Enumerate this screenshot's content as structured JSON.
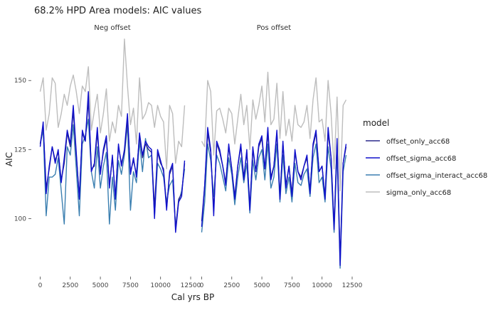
{
  "chart_data": {
    "type": "line",
    "title": "68.2% HPD Area models: AIC values",
    "xlabel": "Cal yrs BP",
    "ylabel": "AIC",
    "facets": [
      "Neg offset",
      "Pos offset"
    ],
    "xlim": [
      -500,
      12500
    ],
    "ylim": [
      80,
      165
    ],
    "xticks": [
      0,
      2500,
      5000,
      7500,
      10000,
      12500
    ],
    "yticks": [
      100,
      125,
      150
    ],
    "grid": false,
    "legend": {
      "title": "model",
      "position": "right"
    },
    "x": [
      0,
      250,
      500,
      750,
      1000,
      1250,
      1500,
      1750,
      2000,
      2250,
      2500,
      2750,
      3000,
      3250,
      3500,
      3750,
      4000,
      4250,
      4500,
      4750,
      5000,
      5250,
      5500,
      5750,
      6000,
      6250,
      6500,
      6750,
      7000,
      7250,
      7500,
      7750,
      8000,
      8250,
      8500,
      8750,
      9000,
      9250,
      9500,
      9750,
      10000,
      10250,
      10500,
      10750,
      11000,
      11250,
      11500,
      11750,
      12000
    ],
    "series": [
      {
        "name": "offset_only_acc68",
        "color": "#2b2a8c",
        "facets": [
          [
            127,
            134,
            111,
            118,
            126,
            121,
            124,
            114,
            120,
            131,
            126,
            139,
            123,
            108,
            131,
            128,
            143,
            118,
            119,
            131,
            117,
            124,
            129,
            112,
            122,
            108,
            126,
            120,
            124,
            136,
            117,
            121,
            116,
            130,
            122,
            127,
            125,
            124,
            104,
            124,
            120,
            118,
            104,
            116,
            119,
            96,
            107,
            109,
            120
          ],
          [
            99,
            112,
            131,
            124,
            103,
            127,
            124,
            119,
            113,
            126,
            118,
            108,
            119,
            126,
            115,
            124,
            104,
            125,
            117,
            126,
            129,
            118,
            131,
            115,
            119,
            131,
            108,
            127,
            112,
            119,
            109,
            124,
            117,
            115,
            119,
            122,
            110,
            126,
            131,
            117,
            119,
            108,
            131,
            122,
            97,
            128,
            85,
            120,
            126
          ]
        ]
      },
      {
        "name": "offset_sigma_acc68",
        "color": "#1010cc",
        "facets": [
          [
            126,
            135,
            109,
            119,
            126,
            120,
            125,
            113,
            122,
            132,
            127,
            141,
            124,
            107,
            132,
            128,
            146,
            117,
            120,
            133,
            116,
            125,
            130,
            111,
            123,
            107,
            127,
            119,
            125,
            138,
            116,
            122,
            115,
            131,
            123,
            128,
            126,
            125,
            100,
            125,
            121,
            117,
            103,
            117,
            120,
            95,
            106,
            108,
            121
          ],
          [
            97,
            112,
            133,
            125,
            101,
            128,
            125,
            119,
            112,
            127,
            118,
            107,
            119,
            127,
            114,
            125,
            103,
            126,
            117,
            127,
            130,
            118,
            133,
            114,
            119,
            132,
            107,
            128,
            111,
            119,
            108,
            125,
            117,
            114,
            119,
            123,
            109,
            127,
            132,
            117,
            119,
            107,
            133,
            122,
            96,
            129,
            83,
            120,
            127
          ]
        ]
      },
      {
        "name": "offset_sigma_interact_acc68",
        "color": "#3b7fb0",
        "facets": [
          [
            127,
            132,
            101,
            115,
            115,
            116,
            122,
            110,
            98,
            126,
            123,
            134,
            118,
            101,
            127,
            130,
            136,
            117,
            111,
            126,
            111,
            119,
            124,
            98,
            115,
            103,
            121,
            116,
            123,
            134,
            103,
            117,
            113,
            128,
            117,
            129,
            122,
            123,
            101,
            120,
            118,
            115,
            106,
            112,
            114,
            97,
            106,
            110,
            118
          ],
          [
            95,
            106,
            127,
            121,
            108,
            123,
            120,
            115,
            110,
            122,
            116,
            105,
            115,
            122,
            113,
            120,
            102,
            121,
            114,
            122,
            125,
            114,
            127,
            111,
            115,
            127,
            106,
            123,
            109,
            115,
            106,
            120,
            113,
            112,
            116,
            118,
            108,
            122,
            127,
            113,
            115,
            106,
            126,
            118,
            95,
            124,
            82,
            117,
            123
          ]
        ]
      },
      {
        "name": "sigma_only_acc68",
        "color": "#bdbdbd",
        "facets": [
          [
            146,
            151,
            132,
            138,
            151,
            149,
            133,
            138,
            145,
            141,
            148,
            152,
            146,
            138,
            148,
            146,
            155,
            132,
            139,
            145,
            131,
            138,
            147,
            128,
            135,
            131,
            141,
            137,
            165,
            148,
            134,
            140,
            127,
            151,
            136,
            138,
            142,
            141,
            133,
            141,
            137,
            135,
            118,
            141,
            138,
            120,
            128,
            126,
            141
          ],
          [
            128,
            126,
            150,
            146,
            123,
            139,
            140,
            136,
            131,
            140,
            138,
            127,
            136,
            145,
            134,
            141,
            125,
            143,
            136,
            141,
            148,
            135,
            153,
            134,
            136,
            149,
            129,
            146,
            130,
            136,
            128,
            141,
            134,
            133,
            135,
            141,
            129,
            143,
            151,
            135,
            136,
            128,
            150,
            138,
            118,
            144,
            110,
            141,
            143
          ]
        ]
      }
    ]
  }
}
